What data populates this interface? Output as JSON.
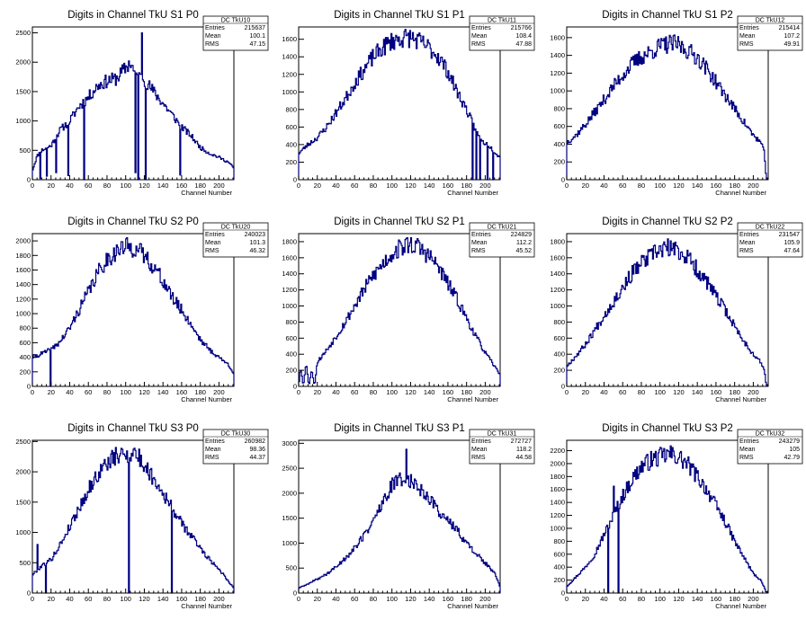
{
  "chart_data": [
    {
      "type": "histogram",
      "title": "Digits in Channel TkU S1 P0",
      "xlabel": "Channel Number",
      "xlim": [
        0,
        216
      ],
      "ylim": [
        0,
        2600
      ],
      "x_ticks": [
        0,
        20,
        40,
        60,
        80,
        100,
        120,
        140,
        160,
        180,
        200
      ],
      "y_ticks": [
        0,
        500,
        1000,
        1500,
        2000,
        2500
      ],
      "stats": {
        "name": "DC_TkU10",
        "entries": "215637",
        "mean": "100.1",
        "rms": "47.15"
      },
      "profile": [
        [
          0,
          150
        ],
        [
          5,
          400
        ],
        [
          10,
          500
        ],
        [
          20,
          580
        ],
        [
          30,
          850
        ],
        [
          40,
          1000
        ],
        [
          50,
          1250
        ],
        [
          60,
          1400
        ],
        [
          70,
          1600
        ],
        [
          80,
          1680
        ],
        [
          90,
          1720
        ],
        [
          100,
          1900
        ],
        [
          105,
          2000
        ],
        [
          110,
          1800
        ],
        [
          120,
          1700
        ],
        [
          130,
          1500
        ],
        [
          140,
          1300
        ],
        [
          150,
          1100
        ],
        [
          160,
          900
        ],
        [
          170,
          750
        ],
        [
          180,
          550
        ],
        [
          190,
          450
        ],
        [
          200,
          380
        ],
        [
          210,
          300
        ],
        [
          216,
          200
        ]
      ],
      "spikes": [
        [
          8,
          20
        ],
        [
          15,
          60
        ],
        [
          25,
          120
        ],
        [
          38,
          70
        ],
        [
          55,
          0
        ],
        [
          110,
          120
        ],
        [
          113,
          0
        ],
        [
          117,
          2500
        ],
        [
          121,
          0
        ],
        [
          158,
          80
        ]
      ],
      "seed": 11
    },
    {
      "type": "histogram",
      "title": "Digits in Channel TkU S1 P1",
      "xlabel": "Channel Number",
      "xlim": [
        0,
        216
      ],
      "ylim": [
        0,
        1740
      ],
      "x_ticks": [
        0,
        20,
        40,
        60,
        80,
        100,
        120,
        140,
        160,
        180,
        200
      ],
      "y_ticks": [
        0,
        200,
        400,
        600,
        800,
        1000,
        1200,
        1400,
        1600
      ],
      "stats": {
        "name": "DC_TkU11",
        "entries": "215766",
        "mean": "108.4",
        "rms": "47.88"
      },
      "profile": [
        [
          0,
          300
        ],
        [
          10,
          400
        ],
        [
          20,
          480
        ],
        [
          30,
          600
        ],
        [
          40,
          760
        ],
        [
          50,
          920
        ],
        [
          60,
          1100
        ],
        [
          70,
          1250
        ],
        [
          80,
          1400
        ],
        [
          90,
          1500
        ],
        [
          100,
          1580
        ],
        [
          110,
          1610
        ],
        [
          120,
          1620
        ],
        [
          130,
          1570
        ],
        [
          140,
          1500
        ],
        [
          150,
          1400
        ],
        [
          160,
          1230
        ],
        [
          170,
          1000
        ],
        [
          180,
          800
        ],
        [
          188,
          600
        ],
        [
          195,
          450
        ],
        [
          205,
          380
        ],
        [
          216,
          250
        ]
      ],
      "spikes": [
        [
          186,
          0
        ],
        [
          190,
          0
        ],
        [
          194,
          0
        ],
        [
          202,
          0
        ],
        [
          208,
          0
        ]
      ],
      "seed": 23
    },
    {
      "type": "histogram",
      "title": "Digits in Channel TkU S1 P2",
      "xlabel": "Channel Number",
      "xlim": [
        0,
        216
      ],
      "ylim": [
        0,
        1720
      ],
      "x_ticks": [
        0,
        20,
        40,
        60,
        80,
        100,
        120,
        140,
        160,
        180,
        200
      ],
      "y_ticks": [
        0,
        200,
        400,
        600,
        800,
        1000,
        1200,
        1400,
        1600
      ],
      "stats": {
        "name": "DC_TkU12",
        "entries": "215414",
        "mean": "107.2",
        "rms": "49.91"
      },
      "profile": [
        [
          0,
          420
        ],
        [
          10,
          500
        ],
        [
          20,
          620
        ],
        [
          30,
          760
        ],
        [
          40,
          900
        ],
        [
          50,
          1050
        ],
        [
          60,
          1180
        ],
        [
          70,
          1300
        ],
        [
          80,
          1380
        ],
        [
          90,
          1440
        ],
        [
          100,
          1500
        ],
        [
          110,
          1530
        ],
        [
          120,
          1520
        ],
        [
          130,
          1450
        ],
        [
          140,
          1380
        ],
        [
          150,
          1250
        ],
        [
          160,
          1100
        ],
        [
          170,
          950
        ],
        [
          180,
          800
        ],
        [
          190,
          650
        ],
        [
          200,
          500
        ],
        [
          208,
          420
        ],
        [
          212,
          300
        ],
        [
          214,
          0
        ]
      ],
      "spikes": [],
      "seed": 37
    },
    {
      "type": "histogram",
      "title": "Digits in Channel TkU S2 P0",
      "xlabel": "Channel Number",
      "xlim": [
        0,
        216
      ],
      "ylim": [
        0,
        2100
      ],
      "x_ticks": [
        0,
        20,
        40,
        60,
        80,
        100,
        120,
        140,
        160,
        180,
        200
      ],
      "y_ticks": [
        0,
        200,
        400,
        600,
        800,
        1000,
        1200,
        1400,
        1600,
        1800,
        2000
      ],
      "stats": {
        "name": "DC_TkU20",
        "entries": "240023",
        "mean": "101.3",
        "rms": "46.32"
      },
      "profile": [
        [
          0,
          400
        ],
        [
          10,
          450
        ],
        [
          20,
          500
        ],
        [
          30,
          620
        ],
        [
          40,
          800
        ],
        [
          50,
          1050
        ],
        [
          60,
          1300
        ],
        [
          70,
          1550
        ],
        [
          80,
          1750
        ],
        [
          90,
          1850
        ],
        [
          100,
          1920
        ],
        [
          110,
          1900
        ],
        [
          120,
          1800
        ],
        [
          130,
          1650
        ],
        [
          140,
          1450
        ],
        [
          150,
          1220
        ],
        [
          160,
          1050
        ],
        [
          170,
          850
        ],
        [
          180,
          650
        ],
        [
          190,
          500
        ],
        [
          200,
          400
        ],
        [
          210,
          300
        ],
        [
          216,
          180
        ]
      ],
      "spikes": [
        [
          19,
          0
        ]
      ],
      "seed": 41
    },
    {
      "type": "histogram",
      "title": "Digits in Channel TkU S2 P1",
      "xlabel": "Channel Number",
      "xlim": [
        0,
        216
      ],
      "ylim": [
        0,
        1900
      ],
      "x_ticks": [
        0,
        20,
        40,
        60,
        80,
        100,
        120,
        140,
        160,
        180,
        200
      ],
      "y_ticks": [
        0,
        200,
        400,
        600,
        800,
        1000,
        1200,
        1400,
        1600,
        1800
      ],
      "stats": {
        "name": "DC_TkU21",
        "entries": "224829",
        "mean": "112.2",
        "rms": "45.52"
      },
      "profile": [
        [
          0,
          0
        ],
        [
          2,
          250
        ],
        [
          5,
          0
        ],
        [
          8,
          300
        ],
        [
          11,
          0
        ],
        [
          14,
          220
        ],
        [
          17,
          0
        ],
        [
          20,
          300
        ],
        [
          30,
          450
        ],
        [
          40,
          620
        ],
        [
          50,
          800
        ],
        [
          60,
          1000
        ],
        [
          70,
          1200
        ],
        [
          80,
          1380
        ],
        [
          90,
          1520
        ],
        [
          100,
          1650
        ],
        [
          110,
          1730
        ],
        [
          120,
          1770
        ],
        [
          130,
          1720
        ],
        [
          140,
          1620
        ],
        [
          150,
          1480
        ],
        [
          160,
          1280
        ],
        [
          170,
          1080
        ],
        [
          180,
          850
        ],
        [
          190,
          620
        ],
        [
          200,
          420
        ],
        [
          210,
          250
        ],
        [
          216,
          150
        ]
      ],
      "spikes": [],
      "seed": 53
    },
    {
      "type": "histogram",
      "title": "Digits in Channel TkU S2 P2",
      "xlabel": "Channel Number",
      "xlim": [
        0,
        216
      ],
      "ylim": [
        0,
        1900
      ],
      "x_ticks": [
        0,
        20,
        40,
        60,
        80,
        100,
        120,
        140,
        160,
        180,
        200
      ],
      "y_ticks": [
        0,
        200,
        400,
        600,
        800,
        1000,
        1200,
        1400,
        1600,
        1800
      ],
      "stats": {
        "name": "DC_TkU22",
        "entries": "231547",
        "mean": "105.9",
        "rms": "47.64"
      },
      "profile": [
        [
          0,
          250
        ],
        [
          10,
          380
        ],
        [
          20,
          520
        ],
        [
          30,
          700
        ],
        [
          40,
          880
        ],
        [
          50,
          1050
        ],
        [
          60,
          1230
        ],
        [
          70,
          1400
        ],
        [
          80,
          1530
        ],
        [
          90,
          1620
        ],
        [
          100,
          1700
        ],
        [
          110,
          1720
        ],
        [
          120,
          1680
        ],
        [
          130,
          1600
        ],
        [
          140,
          1450
        ],
        [
          150,
          1300
        ],
        [
          160,
          1120
        ],
        [
          170,
          950
        ],
        [
          180,
          750
        ],
        [
          190,
          560
        ],
        [
          200,
          400
        ],
        [
          208,
          300
        ],
        [
          212,
          200
        ],
        [
          214,
          0
        ]
      ],
      "spikes": [],
      "seed": 67
    },
    {
      "type": "histogram",
      "title": "Digits in Channel TkU S3 P0",
      "xlabel": "Channel Number",
      "xlim": [
        0,
        216
      ],
      "ylim": [
        0,
        2520
      ],
      "x_ticks": [
        0,
        20,
        40,
        60,
        80,
        100,
        120,
        140,
        160,
        180,
        200
      ],
      "y_ticks": [
        0,
        500,
        1000,
        1500,
        2000,
        2500
      ],
      "stats": {
        "name": "DC_TkU30",
        "entries": "260982",
        "mean": "98.36",
        "rms": "44.37"
      },
      "profile": [
        [
          0,
          300
        ],
        [
          10,
          450
        ],
        [
          20,
          550
        ],
        [
          30,
          800
        ],
        [
          40,
          1100
        ],
        [
          50,
          1400
        ],
        [
          60,
          1700
        ],
        [
          70,
          1950
        ],
        [
          80,
          2150
        ],
        [
          90,
          2250
        ],
        [
          100,
          2300
        ],
        [
          110,
          2320
        ],
        [
          120,
          2100
        ],
        [
          130,
          1900
        ],
        [
          140,
          1650
        ],
        [
          150,
          1400
        ],
        [
          160,
          1150
        ],
        [
          170,
          950
        ],
        [
          180,
          750
        ],
        [
          190,
          550
        ],
        [
          200,
          400
        ],
        [
          210,
          200
        ],
        [
          216,
          80
        ]
      ],
      "spikes": [
        [
          5,
          800
        ],
        [
          14,
          0
        ],
        [
          103,
          0
        ],
        [
          149,
          0
        ]
      ],
      "seed": 79
    },
    {
      "type": "histogram",
      "title": "Digits in Channel TkU S3 P1",
      "xlabel": "Channel Number",
      "xlim": [
        0,
        216
      ],
      "ylim": [
        0,
        3060
      ],
      "x_ticks": [
        0,
        20,
        40,
        60,
        80,
        100,
        120,
        140,
        160,
        180,
        200
      ],
      "y_ticks": [
        0,
        500,
        1000,
        1500,
        2000,
        2500,
        3000
      ],
      "stats": {
        "name": "DC_TkU31",
        "entries": "272727",
        "mean": "118.2",
        "rms": "44.58"
      },
      "profile": [
        [
          0,
          100
        ],
        [
          10,
          180
        ],
        [
          20,
          280
        ],
        [
          30,
          380
        ],
        [
          40,
          520
        ],
        [
          50,
          700
        ],
        [
          60,
          900
        ],
        [
          70,
          1150
        ],
        [
          80,
          1450
        ],
        [
          90,
          1800
        ],
        [
          100,
          2150
        ],
        [
          110,
          2300
        ],
        [
          120,
          2250
        ],
        [
          130,
          2100
        ],
        [
          140,
          1900
        ],
        [
          150,
          1650
        ],
        [
          160,
          1450
        ],
        [
          170,
          1250
        ],
        [
          180,
          1000
        ],
        [
          190,
          800
        ],
        [
          200,
          600
        ],
        [
          210,
          400
        ],
        [
          216,
          120
        ]
      ],
      "spikes": [
        [
          115,
          2880
        ]
      ],
      "seed": 89
    },
    {
      "type": "histogram",
      "title": "Digits in Channel TkU S3 P2",
      "xlabel": "Channel Number",
      "xlim": [
        0,
        216
      ],
      "ylim": [
        0,
        2360
      ],
      "x_ticks": [
        0,
        20,
        40,
        60,
        80,
        100,
        120,
        140,
        160,
        180,
        200
      ],
      "y_ticks": [
        0,
        200,
        400,
        600,
        800,
        1000,
        1200,
        1400,
        1600,
        1800,
        2000,
        2200
      ],
      "stats": {
        "name": "DC_TkU32",
        "entries": "243279",
        "mean": "105",
        "rms": "42.79"
      },
      "profile": [
        [
          0,
          100
        ],
        [
          10,
          250
        ],
        [
          20,
          400
        ],
        [
          30,
          600
        ],
        [
          40,
          900
        ],
        [
          50,
          1200
        ],
        [
          60,
          1500
        ],
        [
          70,
          1750
        ],
        [
          80,
          1950
        ],
        [
          90,
          2050
        ],
        [
          100,
          2100
        ],
        [
          110,
          2150
        ],
        [
          120,
          2100
        ],
        [
          130,
          1980
        ],
        [
          140,
          1800
        ],
        [
          150,
          1600
        ],
        [
          160,
          1350
        ],
        [
          170,
          1100
        ],
        [
          180,
          800
        ],
        [
          190,
          550
        ],
        [
          200,
          300
        ],
        [
          208,
          200
        ],
        [
          212,
          80
        ],
        [
          214,
          0
        ]
      ],
      "spikes": [
        [
          44,
          0
        ],
        [
          50,
          1650
        ],
        [
          55,
          0
        ]
      ],
      "seed": 97
    }
  ],
  "labels": {
    "entries": "Entries",
    "mean": "Mean",
    "rms": "RMS"
  },
  "colors": {
    "line": "#000080",
    "axis": "#000000"
  }
}
